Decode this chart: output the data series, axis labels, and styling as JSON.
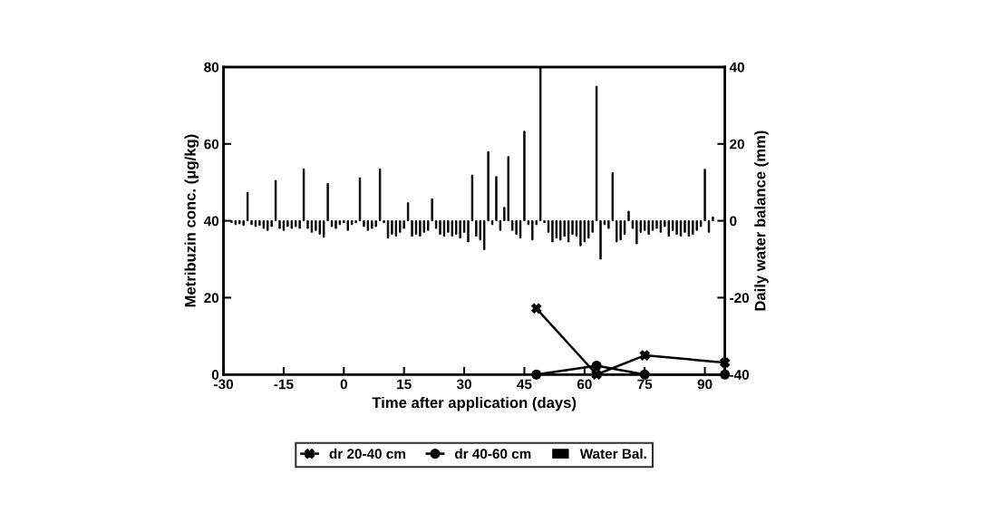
{
  "chart_data": {
    "type": "line",
    "xlabel": "Time after application (days)",
    "ylabel": "Metribuzin conc. (μg/kg)",
    "y2label": "Daily water balance (mm)",
    "xlim": [
      -30,
      95
    ],
    "xticks": [
      -30,
      -15,
      0,
      15,
      30,
      45,
      60,
      75,
      90
    ],
    "ylim": [
      0,
      80
    ],
    "yticks": [
      0,
      20,
      40,
      60,
      80
    ],
    "y2lim": [
      -40,
      40
    ],
    "y2ticks": [
      -40,
      -20,
      0,
      20,
      40
    ],
    "grid": false,
    "legend": "bottom",
    "series": [
      {
        "name": "dr 20-40 cm",
        "color": "#000000",
        "marker": "cross",
        "x": [
          48,
          63,
          75,
          95
        ],
        "values": [
          17.2,
          0,
          5.0,
          3.1
        ]
      },
      {
        "name": "dr 40-60 cm",
        "color": "#000000",
        "marker": "circle",
        "x": [
          48,
          63,
          75,
          95
        ],
        "values": [
          0,
          2.3,
          0,
          0
        ]
      },
      {
        "name": "Water Bal.",
        "type": "bar",
        "axis": "y2",
        "color": "#000000",
        "x": [
          -28,
          -27,
          -26,
          -25,
          -24,
          -23,
          -22,
          -21,
          -20,
          -19,
          -18,
          -17,
          -16,
          -15,
          -14,
          -13,
          -12,
          -11,
          -10,
          -9,
          -8,
          -7,
          -6,
          -5,
          -4,
          -3,
          -2,
          -1,
          0,
          1,
          2,
          3,
          4,
          5,
          6,
          7,
          8,
          9,
          10,
          11,
          12,
          13,
          14,
          15,
          16,
          17,
          18,
          19,
          20,
          21,
          22,
          23,
          24,
          25,
          26,
          27,
          28,
          29,
          30,
          31,
          32,
          33,
          34,
          35,
          36,
          37,
          38,
          39,
          40,
          41,
          42,
          43,
          44,
          45,
          46,
          47,
          48,
          49,
          50,
          51,
          52,
          53,
          54,
          55,
          56,
          57,
          58,
          59,
          60,
          61,
          62,
          63,
          64,
          65,
          66,
          67,
          68,
          69,
          70,
          71,
          72,
          73,
          74,
          75,
          76,
          77,
          78,
          79,
          80,
          81,
          82,
          83,
          84,
          85,
          86,
          87,
          88,
          89,
          90,
          91,
          92
        ],
        "values": [
          -0.5,
          -1,
          -0.8,
          -1.2,
          7.4,
          -1,
          -1.5,
          -1.2,
          -2,
          -2.5,
          -1.5,
          10.5,
          -2,
          -2.5,
          -1.5,
          -2,
          -1.5,
          -2,
          13.5,
          -2,
          -3,
          -2.5,
          -3.5,
          -4.3,
          9.7,
          -1.5,
          -2,
          -1,
          -0.5,
          -2.5,
          -1,
          -0.5,
          11.2,
          -1.5,
          -2.5,
          -2,
          -1.5,
          13.5,
          -0.5,
          -4.5,
          -3.5,
          -4,
          -3,
          -2,
          4.7,
          -4,
          -3.5,
          -4,
          -3,
          -2.5,
          5.7,
          -2,
          -3.5,
          -4,
          -3,
          -4,
          -3.5,
          -4.5,
          -3,
          -5.5,
          11.9,
          -4,
          -5,
          -7.5,
          18.0,
          -1,
          11.5,
          -2.5,
          3.5,
          16.7,
          -2.5,
          -3.5,
          -4.5,
          23.3,
          -1,
          -5,
          -1,
          40,
          -0.5,
          -3,
          -5.5,
          -4.5,
          -5,
          -4,
          -5.5,
          -3.5,
          -4,
          -6.5,
          -5.5,
          -4.5,
          -3,
          35,
          -10,
          -1,
          -2,
          12.5,
          -5.5,
          -5,
          -3.5,
          2.5,
          -2,
          -6,
          -3,
          -2.5,
          -3.5,
          -2.5,
          -2,
          -3,
          -1.5,
          -4,
          -2.5,
          -3.5,
          -4,
          -3,
          -4,
          -3.5,
          -2.5,
          -1.5,
          13.4,
          -3,
          1
        ]
      }
    ]
  }
}
